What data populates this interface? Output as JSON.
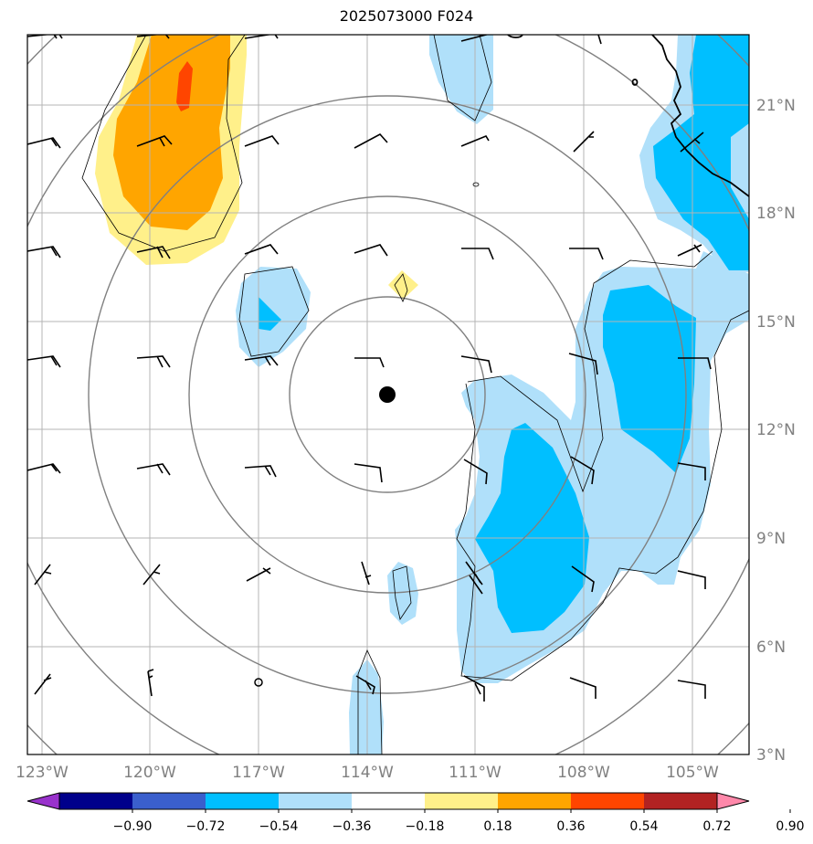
{
  "title": "2025073000 F024",
  "lon_labels": [
    "123°W",
    "120°W",
    "117°W",
    "114°W",
    "111°W",
    "108°W",
    "105°W"
  ],
  "lat_labels": [
    "21°N",
    "18°N",
    "15°N",
    "12°N",
    "9°N",
    "6°N",
    "3°N"
  ],
  "colorbar": {
    "tick_labels": [
      "−0.90",
      "−0.72",
      "−0.54",
      "−0.36",
      "−0.18",
      "0.18",
      "0.36",
      "0.54",
      "0.72",
      "0.90"
    ],
    "colors": [
      "#9932cc",
      "#00008b",
      "#3a5fcd",
      "#00bfff",
      "#b0e0fa",
      "#ffffff",
      "#fff08a",
      "#ffa500",
      "#ff4500",
      "#b22222",
      "#ff88aa"
    ]
  },
  "storm_center": {
    "lon": -113.5,
    "lat": 13.0
  },
  "range_ring_radii_deg": [
    2.7,
    5.5,
    8.3,
    11.0,
    13.5
  ]
}
